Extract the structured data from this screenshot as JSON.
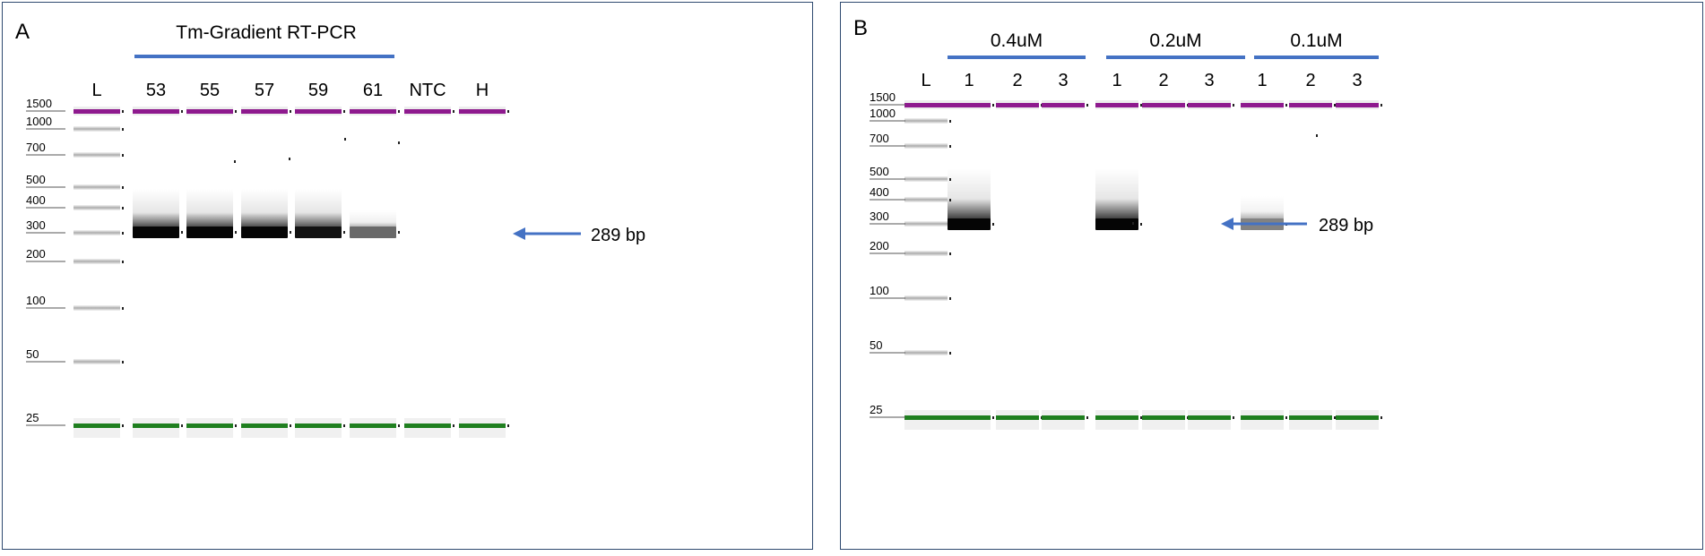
{
  "panelA": {
    "letter": "A",
    "title": "Tm-Gradient RT-PCR",
    "lane_labels": [
      "L",
      "53",
      "55",
      "57",
      "59",
      "61",
      "NTC",
      "H"
    ],
    "ladder_labels": [
      "1500",
      "1000",
      "700",
      "500",
      "400",
      "300",
      "200",
      "100",
      "50",
      "25"
    ],
    "arrow_label": "289 bp",
    "band_intensity": [
      1.0,
      1.0,
      1.0,
      0.95,
      0.6,
      0,
      0
    ]
  },
  "panelB": {
    "letter": "B",
    "groups": [
      "0.4uM",
      "0.2uM",
      "0.1uM"
    ],
    "lane_labels": [
      "L",
      "1",
      "2",
      "3",
      "1",
      "2",
      "3",
      "1",
      "2",
      "3"
    ],
    "ladder_labels": [
      "1500",
      "1000",
      "700",
      "500",
      "400",
      "300",
      "200",
      "100",
      "50",
      "25"
    ],
    "arrow_label": "289 bp",
    "band_intensity": [
      1.0,
      0,
      0,
      1.0,
      0,
      0,
      0.5,
      0,
      0
    ]
  },
  "colors": {
    "upper_marker": "#8e1a8e",
    "lower_marker": "#1f7f1f",
    "bracket": "#4472c4",
    "arrow": "#4472c4",
    "border": "#2f4a70"
  }
}
